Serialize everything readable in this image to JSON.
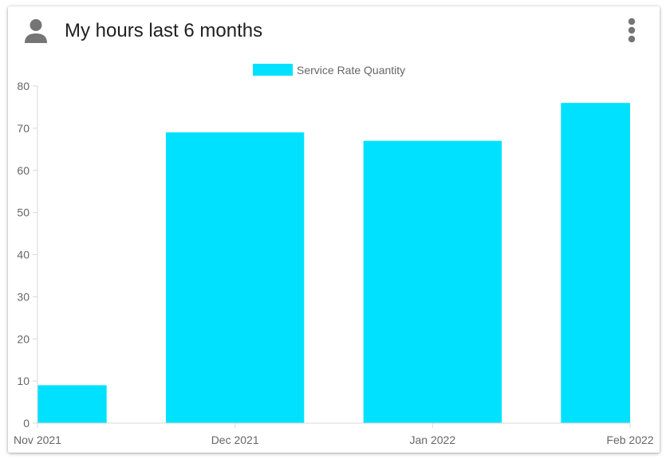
{
  "header": {
    "title": "My hours last 6 months",
    "user_icon": "person-icon",
    "menu_icon": "more-vert-icon"
  },
  "colors": {
    "bar": "#00e1ff",
    "axis": "#d9d9d9",
    "tick_text": "#666666",
    "title_text": "#212121",
    "icon": "#757575"
  },
  "chart_data": {
    "type": "bar",
    "categories": [
      "Nov 2021",
      "Dec 2021",
      "Jan 2022",
      "Feb 2022"
    ],
    "series": [
      {
        "name": "Service Rate Quantity",
        "values": [
          9,
          69,
          67,
          76
        ]
      }
    ],
    "ylim": [
      0,
      80
    ],
    "yticks": [
      0,
      10,
      20,
      30,
      40,
      50,
      60,
      70,
      80
    ],
    "xlabel": "",
    "ylabel": "",
    "grid": false,
    "legend": "top-center"
  }
}
